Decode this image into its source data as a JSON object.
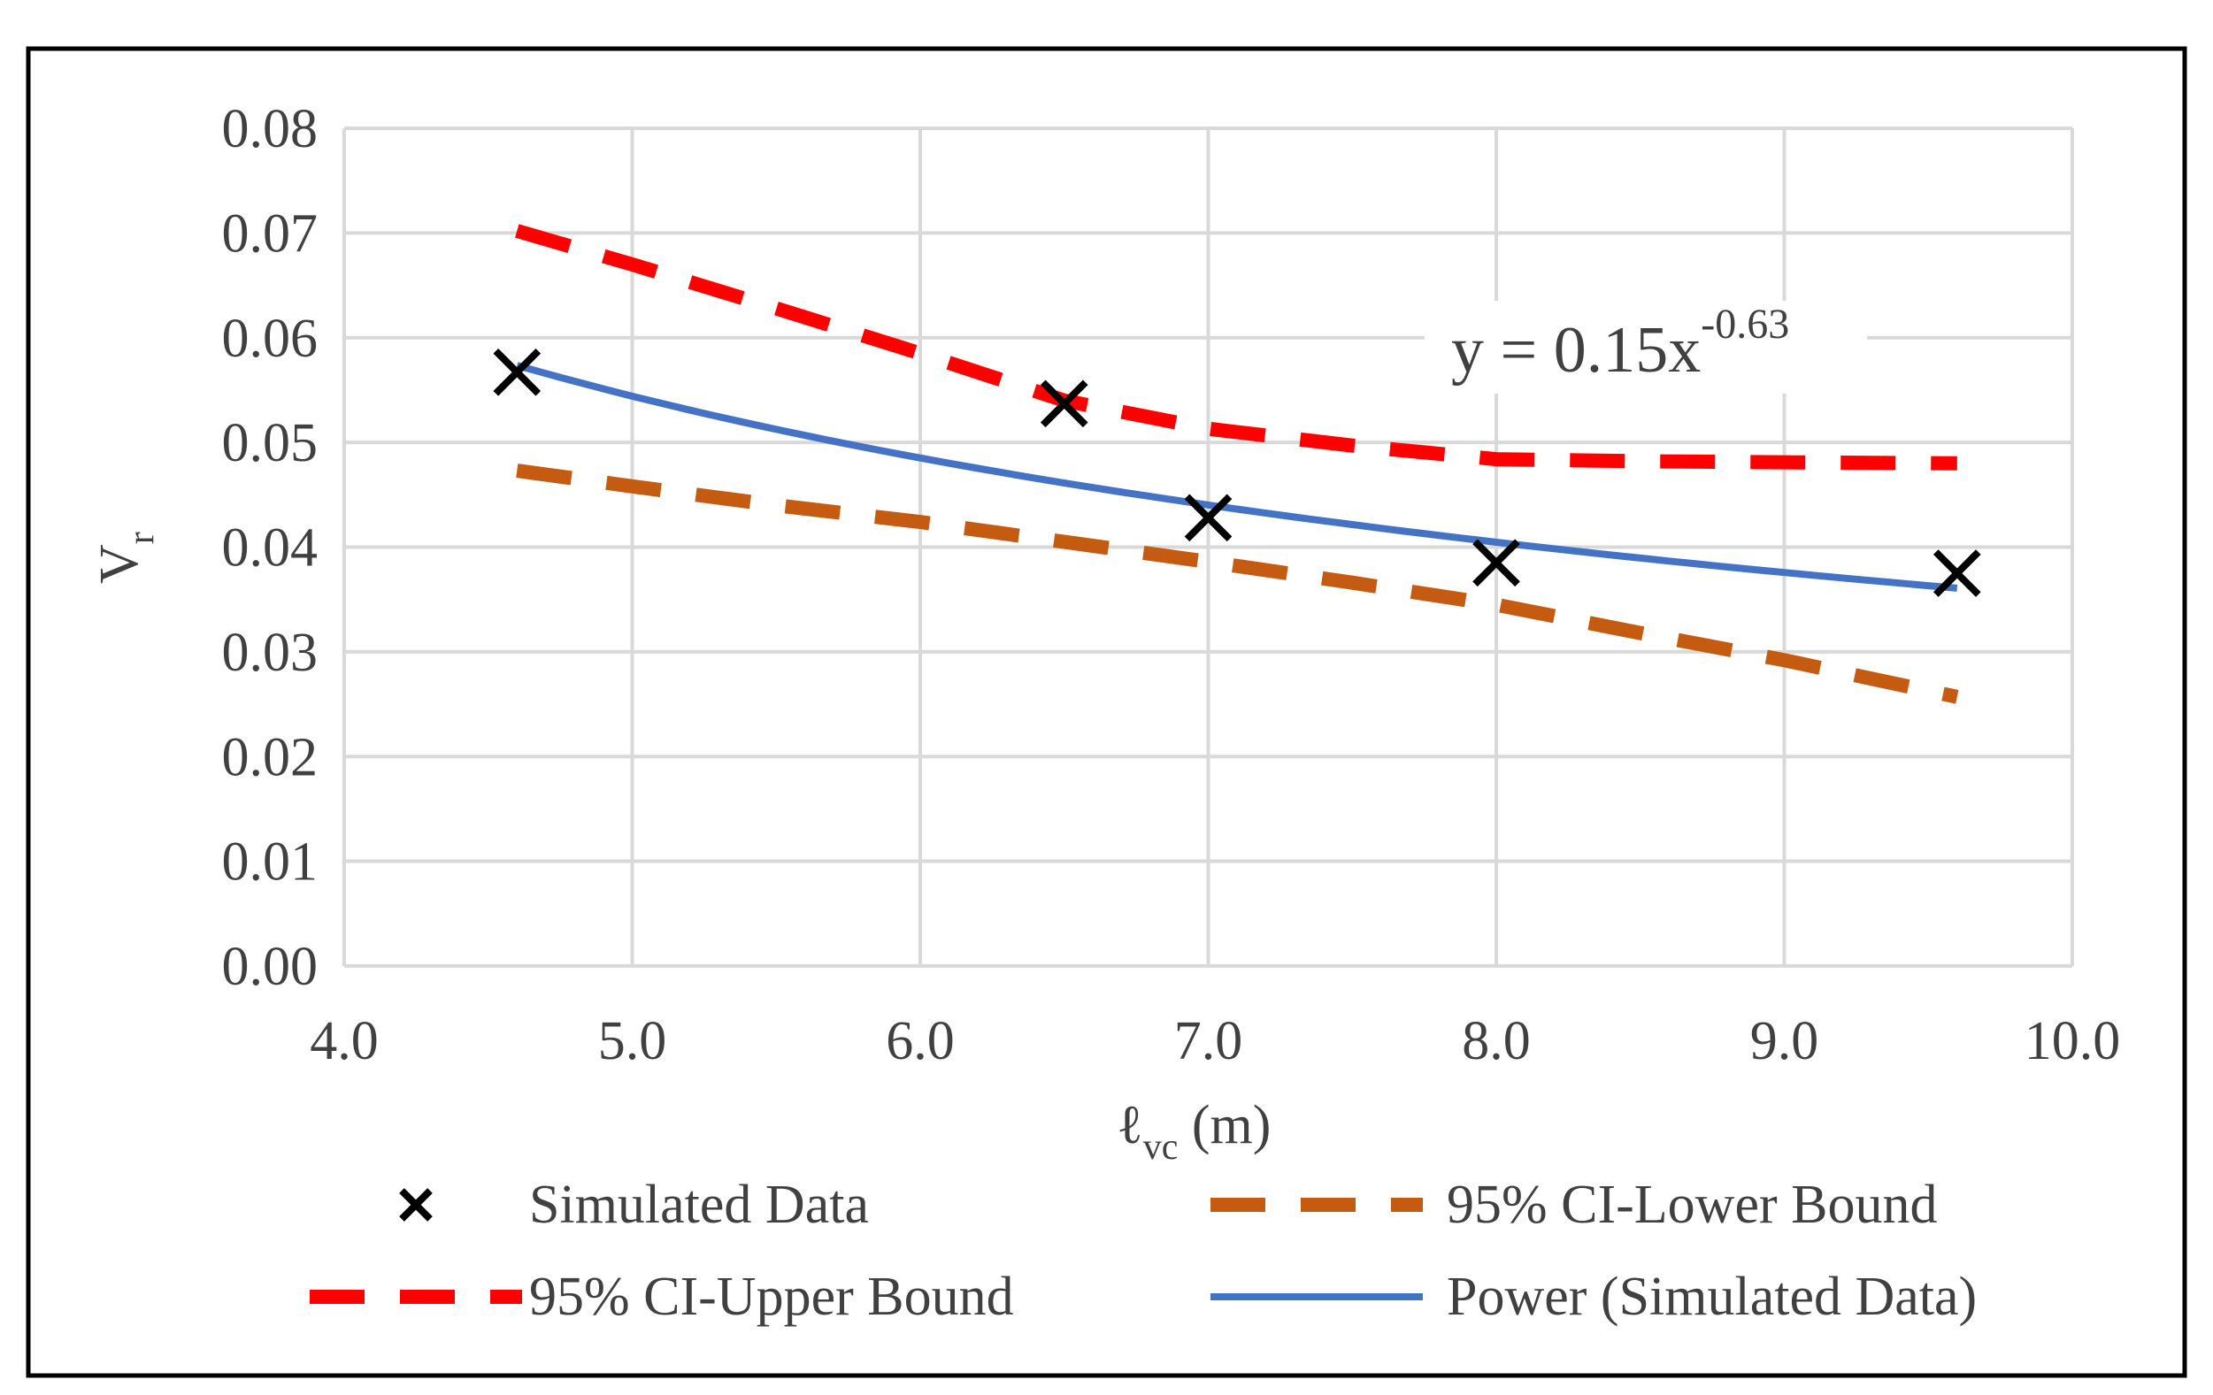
{
  "chart_data": {
    "type": "scatter",
    "title": "",
    "xlabel": {
      "main": "ℓ",
      "sub": "vc",
      "unit": " (m)"
    },
    "ylabel": {
      "main": "V",
      "sub": "r"
    },
    "xlim": [
      4.0,
      10.0
    ],
    "ylim": [
      0.0,
      0.08
    ],
    "x_ticks": [
      "4.0",
      "5.0",
      "6.0",
      "7.0",
      "8.0",
      "9.0",
      "10.0"
    ],
    "y_ticks": [
      "0.00",
      "0.01",
      "0.02",
      "0.03",
      "0.04",
      "0.05",
      "0.06",
      "0.07",
      "0.08"
    ],
    "grid": true,
    "legend_position": "bottom",
    "series": [
      {
        "name": "Simulated Data",
        "kind": "marker-x",
        "color": "#000000",
        "x": [
          4.6,
          6.5,
          7.0,
          8.0,
          9.6
        ],
        "y": [
          0.0567,
          0.0537,
          0.0428,
          0.0385,
          0.0375
        ]
      },
      {
        "name": "95% CI-Lower Bound",
        "kind": "dashed-line",
        "color": "#C55A11",
        "x": [
          4.6,
          5.0,
          5.5,
          6.0,
          6.5,
          7.0,
          7.5,
          8.0,
          8.5,
          9.0,
          9.6
        ],
        "y": [
          0.0473,
          0.0458,
          0.044,
          0.0424,
          0.0405,
          0.0386,
          0.0366,
          0.0345,
          0.0318,
          0.0292,
          0.0257
        ]
      },
      {
        "name": "95% CI-Upper Bound",
        "kind": "dashed-line",
        "color": "#FF0000",
        "x": [
          4.6,
          5.0,
          5.5,
          6.0,
          6.5,
          7.0,
          7.5,
          8.0,
          8.5,
          9.0,
          9.6
        ],
        "y": [
          0.0702,
          0.067,
          0.0628,
          0.0585,
          0.054,
          0.0513,
          0.0497,
          0.0484,
          0.0482,
          0.0481,
          0.048
        ]
      },
      {
        "name": "Power (Simulated Data)",
        "kind": "power-trendline",
        "color": "#4472C4",
        "coefficient": 0.15,
        "exponent": -0.63,
        "x_range": [
          4.6,
          9.6
        ]
      }
    ],
    "equation": {
      "base": "y = 0.15x",
      "exponent": "-0.63"
    }
  },
  "legend_order": [
    [
      "Simulated Data",
      "95% CI-Lower Bound"
    ],
    [
      "95% CI-Upper Bound",
      "Power (Simulated Data)"
    ]
  ]
}
